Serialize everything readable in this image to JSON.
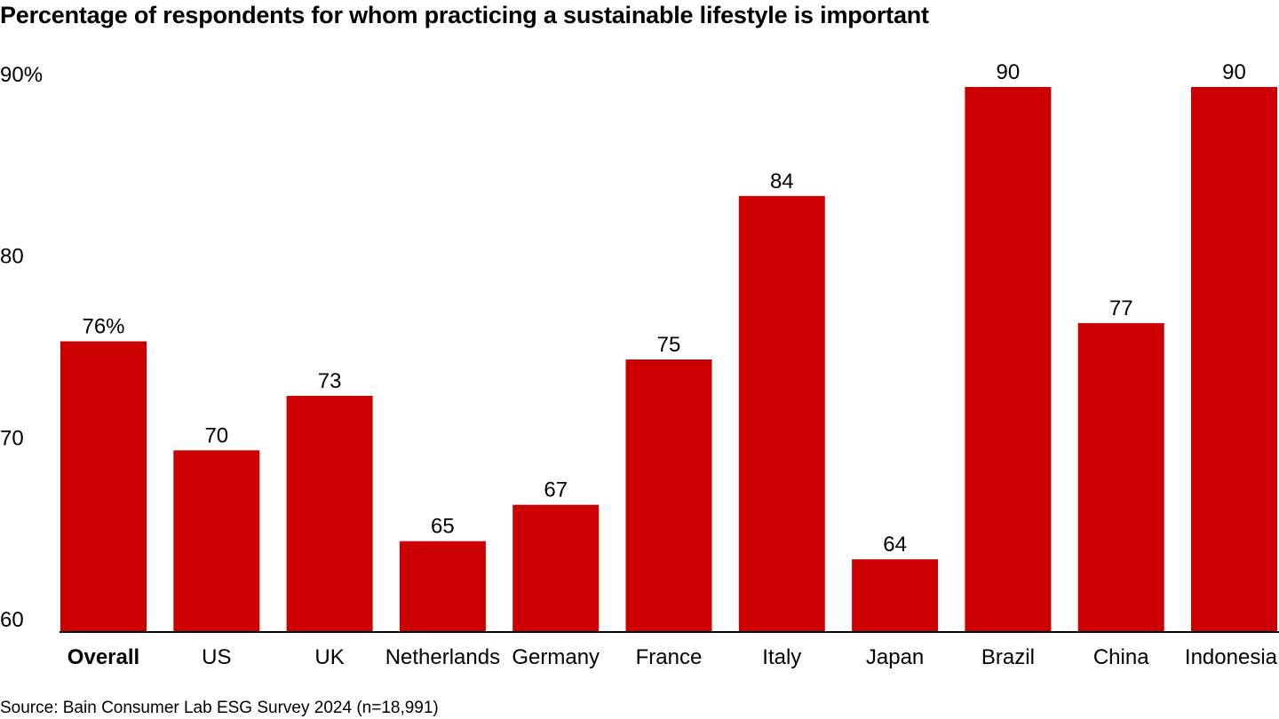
{
  "chart_data": {
    "type": "bar",
    "title": "Percentage of respondents for whom practicing a sustainable lifestyle is important",
    "source": "Source: Bain Consumer Lab ESG Survey 2024 (n=18,991)",
    "categories": [
      "Overall",
      "US",
      "UK",
      "Netherlands",
      "Germany",
      "France",
      "Italy",
      "Japan",
      "Brazil",
      "China",
      "Indonesia"
    ],
    "values": [
      76,
      70,
      73,
      65,
      67,
      75,
      84,
      64,
      90,
      77,
      90
    ],
    "value_labels": [
      "76%",
      "70",
      "73",
      "65",
      "67",
      "75",
      "84",
      "64",
      "90",
      "77",
      "90"
    ],
    "bold_categories": [
      "Overall"
    ],
    "ylim": [
      60,
      90
    ],
    "yticks": [
      60,
      70,
      80,
      90
    ],
    "ytick_labels": [
      "60",
      "70",
      "80",
      "90%"
    ],
    "xlabel": "",
    "ylabel": "",
    "grid": false,
    "bar_color": "#cc0000",
    "axis_color": "#000000"
  }
}
